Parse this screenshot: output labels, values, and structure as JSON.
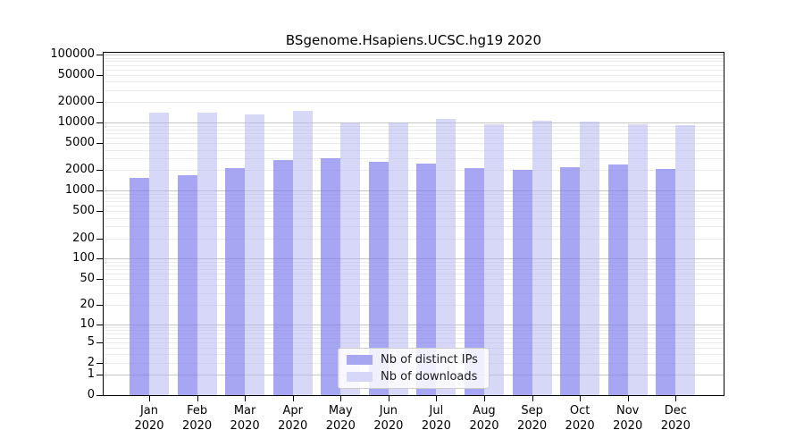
{
  "title": "BSgenome.Hsapiens.UCSC.hg19 2020",
  "chart_data": {
    "type": "bar",
    "title": "BSgenome.Hsapiens.UCSC.hg19 2020",
    "scale": "log1p",
    "grid": true,
    "legend_position": "bottom-center-inside",
    "categories": [
      "Jan",
      "Feb",
      "Mar",
      "Apr",
      "May",
      "Jun",
      "Jul",
      "Aug",
      "Sep",
      "Oct",
      "Nov",
      "Dec"
    ],
    "year": "2020",
    "series": [
      {
        "name": "Nb of distinct IPs",
        "color": "rgba(122,122,236,0.67)",
        "swatch_color": "#a6a6f1",
        "values": [
          1550,
          1690,
          2180,
          2800,
          3030,
          2660,
          2480,
          2130,
          2000,
          2200,
          2430,
          2080
        ]
      },
      {
        "name": "Nb of downloads",
        "color": "rgba(178,178,242,0.52)",
        "swatch_color": "#d7d7f8",
        "values": [
          13900,
          14000,
          13100,
          15100,
          10200,
          10200,
          11500,
          9500,
          10600,
          10300,
          9600,
          9200
        ]
      }
    ],
    "y_ticks": [
      0,
      1,
      2,
      5,
      10,
      20,
      50,
      100,
      200,
      500,
      1000,
      2000,
      5000,
      10000,
      20000,
      50000,
      100000
    ],
    "y_tick_labels": [
      "0",
      "1",
      "2",
      "5",
      "10",
      "20",
      "50",
      "100",
      "200",
      "500",
      "1000",
      "2000",
      "5000",
      "10000",
      "20000",
      "50000",
      "100000"
    ],
    "ylim": [
      0,
      100000
    ],
    "xlabel": "",
    "ylabel": ""
  },
  "legend": {
    "items": [
      {
        "label": "Nb of distinct IPs"
      },
      {
        "label": "Nb of downloads"
      }
    ]
  },
  "colors": {
    "distinct_ips_bar": "#a6a6f1",
    "downloads_bar": "#d7d7f8",
    "major_gridline": "#c6c6c6",
    "minor_gridline": "#ebebeb",
    "axis": "#000000"
  }
}
